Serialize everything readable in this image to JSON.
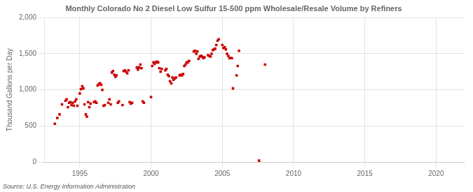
{
  "chart_data": {
    "type": "scatter",
    "title": "Monthly Colorado No 2 Diesel Low Sulfur 15-500 ppm Wholesale/Resale Volume by Refiners",
    "ylabel": "Thousand Gallons per Day",
    "annotation": "Source: U.S. Energy Information Administration",
    "color": "#cc0000",
    "marker": "square",
    "grid": true,
    "xlim": [
      1992.5,
      2022
    ],
    "ylim": [
      0,
      2000
    ],
    "xticks": [
      1995,
      2000,
      2005,
      2010,
      2015,
      2020
    ],
    "yticks": [
      0,
      500,
      {
        "value": 1000,
        "label": "1,000"
      },
      {
        "value": 1500,
        "label": "1,500"
      },
      {
        "value": 2000,
        "label": "2,000"
      }
    ],
    "x": [
      1993.25,
      1993.42,
      1993.58,
      1993.75,
      1994.0,
      1994.08,
      1994.17,
      1994.25,
      1994.33,
      1994.42,
      1994.5,
      1994.58,
      1994.67,
      1994.75,
      1994.83,
      1995.0,
      1995.08,
      1995.17,
      1995.25,
      1995.33,
      1995.42,
      1995.5,
      1995.58,
      1995.67,
      1995.75,
      1996.0,
      1996.08,
      1996.17,
      1996.25,
      1996.33,
      1996.42,
      1996.5,
      1996.58,
      1996.67,
      1996.75,
      1997.0,
      1997.08,
      1997.17,
      1997.25,
      1997.33,
      1997.42,
      1997.5,
      1997.58,
      1997.67,
      1997.75,
      1998.0,
      1998.08,
      1998.17,
      1998.25,
      1998.33,
      1998.42,
      1998.5,
      1998.58,
      1998.67,
      1999.0,
      1999.08,
      1999.17,
      1999.25,
      1999.33,
      1999.42,
      1999.5,
      2000.0,
      2000.08,
      2000.17,
      2000.25,
      2000.33,
      2000.42,
      2000.5,
      2000.58,
      2000.67,
      2000.75,
      2001.0,
      2001.08,
      2001.17,
      2001.25,
      2001.33,
      2001.42,
      2001.5,
      2001.58,
      2001.67,
      2001.75,
      2002.0,
      2002.08,
      2002.17,
      2002.25,
      2002.33,
      2002.42,
      2002.5,
      2002.58,
      2002.67,
      2003.0,
      2003.08,
      2003.17,
      2003.25,
      2003.33,
      2003.42,
      2003.5,
      2003.58,
      2003.67,
      2003.75,
      2004.0,
      2004.08,
      2004.17,
      2004.25,
      2004.33,
      2004.42,
      2004.5,
      2004.58,
      2004.67,
      2004.75,
      2005.0,
      2005.08,
      2005.17,
      2005.25,
      2005.33,
      2005.42,
      2005.5,
      2005.58,
      2005.67,
      2005.75,
      2006.0,
      2006.08,
      2006.17,
      2007.58,
      2008.0
    ],
    "values": [
      530,
      610,
      660,
      800,
      850,
      870,
      760,
      820,
      830,
      790,
      820,
      780,
      840,
      870,
      780,
      950,
      1010,
      1050,
      1020,
      800,
      660,
      630,
      830,
      760,
      810,
      830,
      840,
      820,
      1060,
      1080,
      1090,
      1070,
      1000,
      780,
      790,
      820,
      870,
      800,
      1240,
      1260,
      1210,
      1180,
      1200,
      820,
      840,
      790,
      1260,
      1270,
      1250,
      1230,
      1270,
      830,
      810,
      820,
      1310,
      1280,
      1310,
      1350,
      1300,
      840,
      820,
      900,
      1330,
      1380,
      1360,
      1380,
      1390,
      1380,
      1300,
      1250,
      1290,
      1270,
      1290,
      1210,
      1190,
      1120,
      1090,
      1170,
      1140,
      1160,
      1170,
      1200,
      1210,
      1200,
      1220,
      1330,
      1350,
      1380,
      1380,
      1400,
      1530,
      1540,
      1500,
      1530,
      1430,
      1460,
      1470,
      1460,
      1440,
      1450,
      1480,
      1470,
      1460,
      1500,
      1550,
      1560,
      1570,
      1620,
      1680,
      1700,
      1620,
      1580,
      1590,
      1560,
      1500,
      1470,
      1440,
      1440,
      1440,
      1020,
      1200,
      1330,
      1540,
      20,
      1350
    ]
  }
}
